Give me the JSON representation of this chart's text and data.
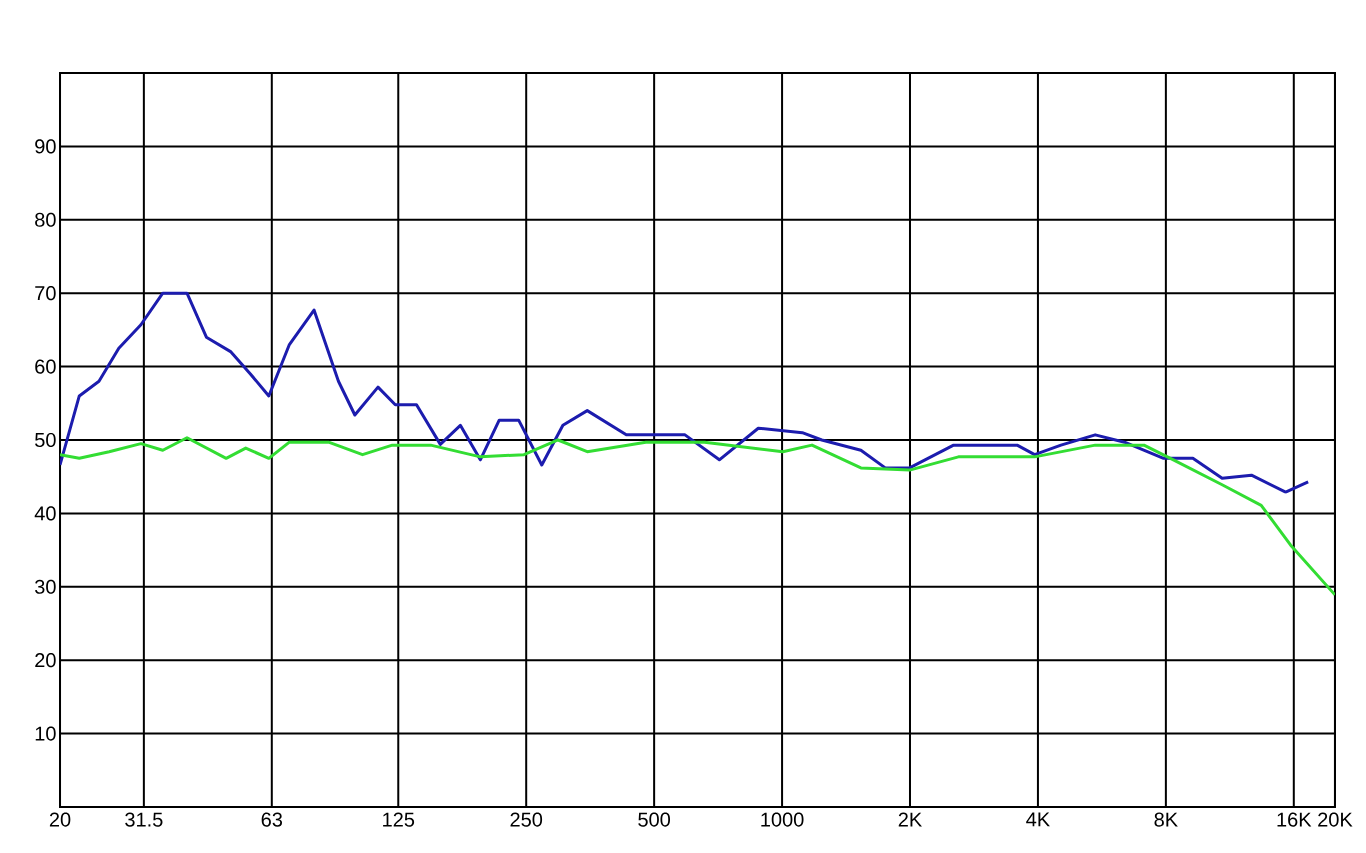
{
  "chart_data": {
    "type": "line",
    "log": "x",
    "grid": true,
    "xlim": [
      20,
      20000
    ],
    "ylim": [
      0,
      100
    ],
    "xticks": [
      20,
      31.5,
      63,
      125,
      250,
      500,
      1000,
      {
        "value": 2000,
        "label": "2K"
      },
      {
        "value": 4000,
        "label": "4K"
      },
      {
        "value": 8000,
        "label": "8K"
      },
      {
        "value": 16000,
        "label": "16K"
      },
      {
        "value": 20000,
        "label": "20K"
      }
    ],
    "yticks": [
      10,
      20,
      30,
      40,
      50,
      60,
      70,
      80,
      90
    ],
    "series": [
      {
        "color": "#1c1cae",
        "x": [
          20,
          22.2,
          24.7,
          27.5,
          31,
          34.9,
          39.8,
          44.2,
          50.5,
          56.1,
          62,
          69.3,
          79.2,
          90.4,
          98.8,
          112,
          123,
          138,
          157,
          175,
          195,
          216,
          240,
          272,
          305,
          348,
          430,
          591,
          712,
          879,
          1116,
          1240,
          1533,
          1749,
          1996,
          2533,
          3574,
          3930,
          4532,
          5456,
          6396,
          7902,
          9260,
          10852,
          12720,
          15310,
          17294
        ],
        "values": [
          46.6,
          56,
          58,
          62.5,
          65.7,
          70,
          70,
          64,
          62,
          59,
          56,
          63,
          67.7,
          58,
          53.4,
          57.2,
          54.8,
          54.8,
          49.4,
          52,
          47.3,
          52.7,
          52.7,
          46.6,
          52,
          54,
          50.7,
          50.7,
          47.3,
          51.6,
          51,
          50,
          48.6,
          46.2,
          46.2,
          49.3,
          49.3,
          48,
          49.3,
          50.7,
          49.7,
          47.5,
          47.5,
          44.8,
          45.2,
          42.9,
          44.3
        ]
      },
      {
        "color": "#33dd33",
        "x": [
          20,
          22.2,
          26.1,
          31,
          34.9,
          39.8,
          49.2,
          54.7,
          62,
          69.3,
          85.7,
          103,
          121,
          149,
          195,
          247,
          297,
          348,
          478,
          657,
          1004,
          1176,
          1533,
          1996,
          2600,
          3930,
          5456,
          7107,
          8332,
          10852,
          13410,
          15716,
          20000
        ],
        "values": [
          48,
          47.5,
          48.4,
          49.5,
          48.6,
          50.3,
          47.5,
          48.9,
          47.5,
          49.7,
          49.7,
          48,
          49.3,
          49.3,
          47.7,
          48,
          50,
          48.4,
          49.7,
          49.7,
          48.4,
          49.3,
          46.2,
          45.9,
          47.7,
          47.7,
          49.3,
          49.3,
          47.3,
          43.9,
          41.1,
          35.7,
          28.9
        ]
      }
    ]
  }
}
